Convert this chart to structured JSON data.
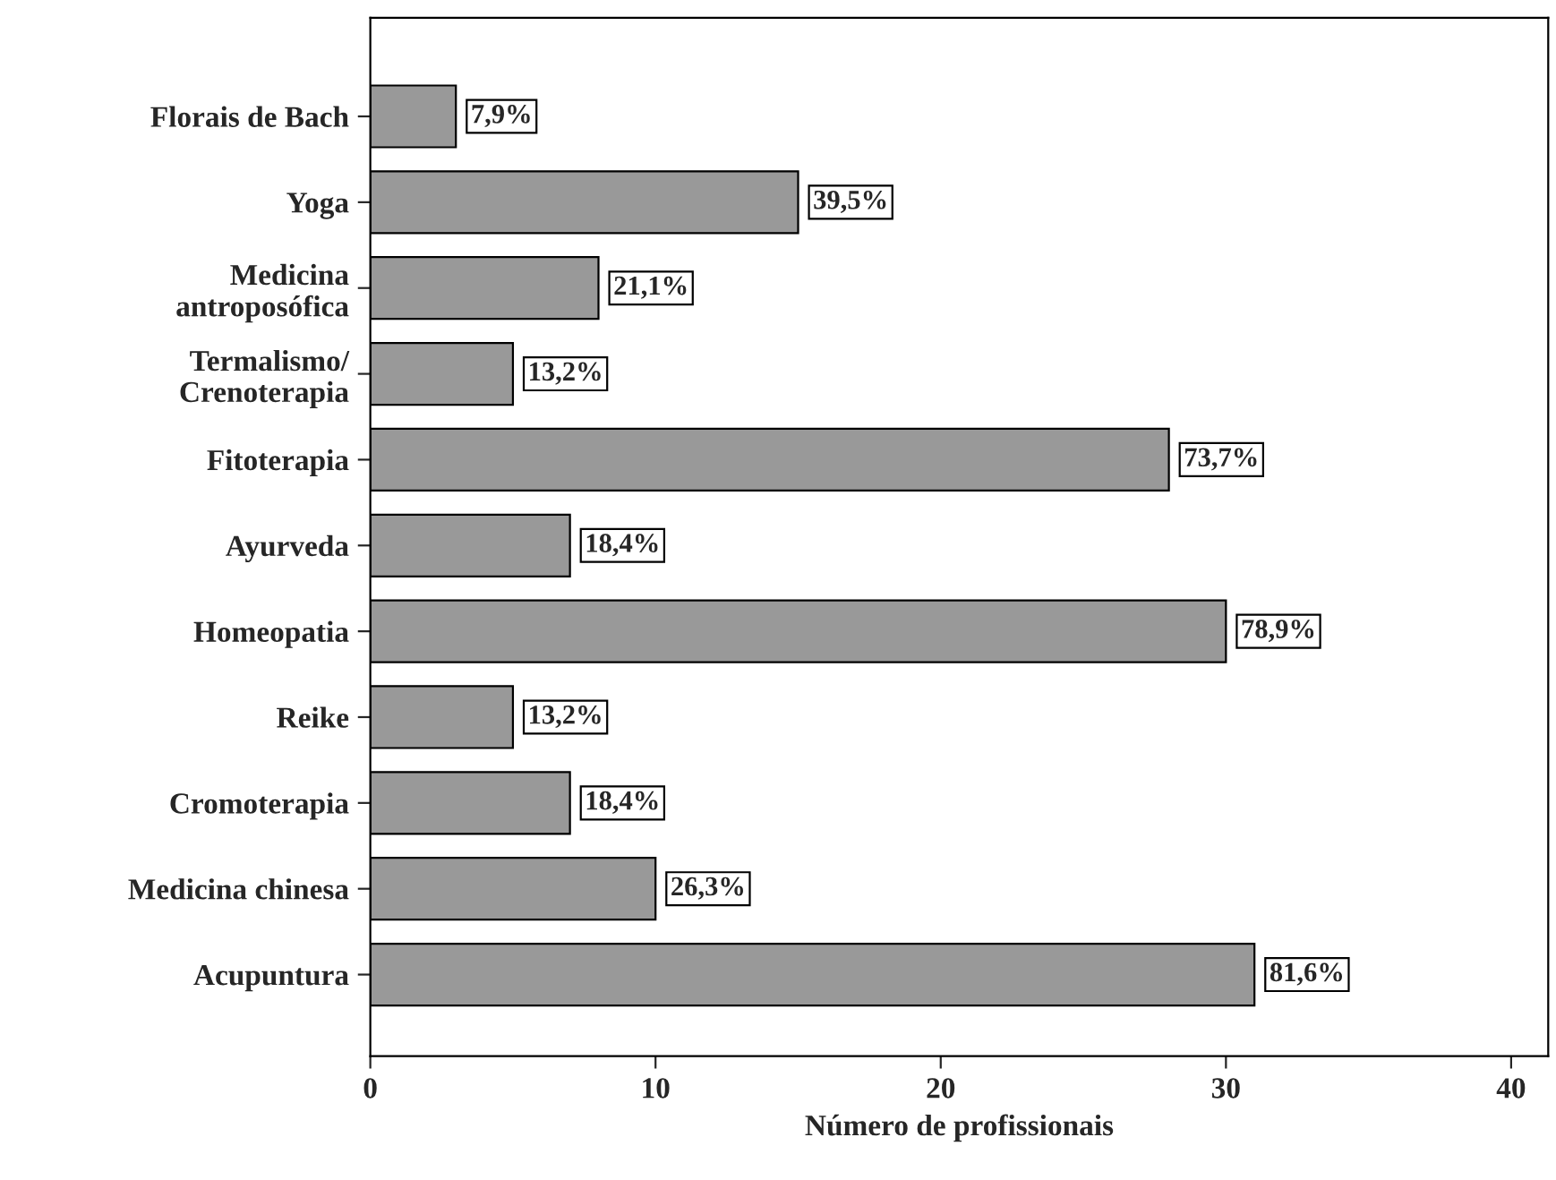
{
  "chart_data": {
    "type": "bar",
    "orientation": "horizontal",
    "xlabel": "Número de profissionais",
    "categories": [
      "Florais de Bach",
      "Yoga",
      "Medicina\nantroposófica",
      "Termalismo/\nCrenoterapia",
      "Fitoterapia",
      "Ayurveda",
      "Homeopatia",
      "Reike",
      "Cromoterapia",
      "Medicina chinesa",
      "Acupuntura"
    ],
    "values": [
      3,
      15,
      8,
      5,
      28,
      7,
      30,
      5,
      7,
      10,
      31
    ],
    "annotations": [
      {
        "text": "7,9%",
        "x": 3,
        "y": "Florais de Bach"
      },
      {
        "text": "39,5%",
        "x": 15,
        "y": "Yoga"
      },
      {
        "text": "21,1%",
        "x": 8,
        "y": "Medicina\nantroposófica"
      },
      {
        "text": "13,2%",
        "x": 5,
        "y": "Termalismo/\nCrenoterapia"
      },
      {
        "text": "73,7%",
        "x": 28,
        "y": "Fitoterapia"
      },
      {
        "text": "18,4%",
        "x": 7,
        "y": "Ayurveda"
      },
      {
        "text": "78,9%",
        "x": 30,
        "y": "Homeopatia"
      },
      {
        "text": "13,2%",
        "x": 5,
        "y": "Reike"
      },
      {
        "text": "18,4%",
        "x": 7,
        "y": "Cromoterapia"
      },
      {
        "text": "26,3%",
        "x": 10,
        "y": "Medicina chinesa"
      },
      {
        "text": "81,6%",
        "x": 31,
        "y": "Acupuntura"
      }
    ],
    "color": "#999999",
    "xlim": [
      0,
      41.3
    ],
    "xticks": [
      0,
      10,
      20,
      30,
      40
    ],
    "grid": false
  }
}
